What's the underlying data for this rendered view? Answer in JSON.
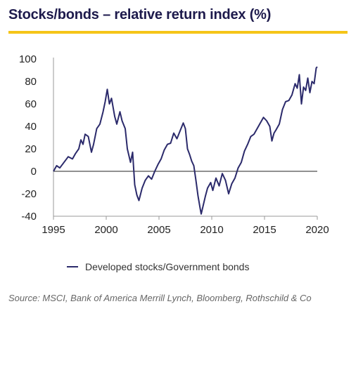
{
  "title": "Stocks/bonds – relative return index (%)",
  "source": "Source: MSCI, Bank of America Merrill Lynch, Bloomberg, Rothschild & Co",
  "colors": {
    "line": "#2b2a6b",
    "accent_rule": "#f5c518",
    "title": "#1d1a4c"
  },
  "chart_data": {
    "type": "line",
    "title": "Stocks/bonds – relative return index (%)",
    "xlabel": "",
    "ylabel": "",
    "xlim": [
      1995,
      2020
    ],
    "ylim": [
      -40,
      100
    ],
    "x_ticks": [
      1995,
      2000,
      2005,
      2010,
      2015,
      2020
    ],
    "y_ticks": [
      100,
      80,
      60,
      40,
      20,
      0,
      -20,
      -40
    ],
    "grid": false,
    "zero_line": true,
    "legend_position": "bottom-center",
    "series": [
      {
        "name": "Developed stocks/Government bonds",
        "x": [
          1995.0,
          1995.3,
          1995.6,
          1996.0,
          1996.4,
          1996.8,
          1997.1,
          1997.4,
          1997.6,
          1997.8,
          1998.0,
          1998.3,
          1998.6,
          1998.8,
          1999.1,
          1999.4,
          1999.7,
          1999.9,
          2000.1,
          2000.3,
          2000.5,
          2000.8,
          2001.0,
          2001.3,
          2001.5,
          2001.8,
          2002.0,
          2002.3,
          2002.5,
          2002.7,
          2002.9,
          2003.1,
          2003.4,
          2003.7,
          2004.0,
          2004.3,
          2004.6,
          2004.9,
          2005.2,
          2005.5,
          2005.8,
          2006.1,
          2006.4,
          2006.7,
          2007.0,
          2007.3,
          2007.5,
          2007.7,
          2007.9,
          2008.1,
          2008.3,
          2008.5,
          2008.7,
          2008.9,
          2009.0,
          2009.2,
          2009.4,
          2009.6,
          2009.9,
          2010.1,
          2010.4,
          2010.7,
          2011.0,
          2011.3,
          2011.6,
          2011.9,
          2012.2,
          2012.5,
          2012.8,
          2013.1,
          2013.4,
          2013.7,
          2014.0,
          2014.3,
          2014.6,
          2014.9,
          2015.2,
          2015.5,
          2015.7,
          2015.9,
          2016.1,
          2016.4,
          2016.7,
          2017.0,
          2017.3,
          2017.6,
          2017.9,
          2018.1,
          2018.3,
          2018.5,
          2018.7,
          2018.9,
          2019.1,
          2019.3,
          2019.5,
          2019.7,
          2019.9,
          2020.0
        ],
        "values": [
          0,
          5,
          3,
          8,
          13,
          11,
          16,
          20,
          28,
          24,
          33,
          31,
          17,
          24,
          38,
          42,
          53,
          62,
          73,
          60,
          65,
          49,
          42,
          53,
          45,
          38,
          20,
          8,
          17,
          -12,
          -21,
          -26,
          -15,
          -8,
          -4,
          -7,
          0,
          6,
          11,
          19,
          24,
          25,
          34,
          29,
          36,
          43,
          38,
          20,
          15,
          9,
          5,
          -8,
          -22,
          -33,
          -38,
          -30,
          -22,
          -15,
          -10,
          -17,
          -6,
          -13,
          -2,
          -8,
          -20,
          -11,
          -6,
          3,
          8,
          18,
          24,
          31,
          33,
          38,
          43,
          48,
          45,
          40,
          27,
          34,
          37,
          42,
          55,
          62,
          63,
          68,
          78,
          74,
          86,
          60,
          75,
          72,
          83,
          70,
          80,
          78,
          92,
          93
        ]
      }
    ]
  }
}
